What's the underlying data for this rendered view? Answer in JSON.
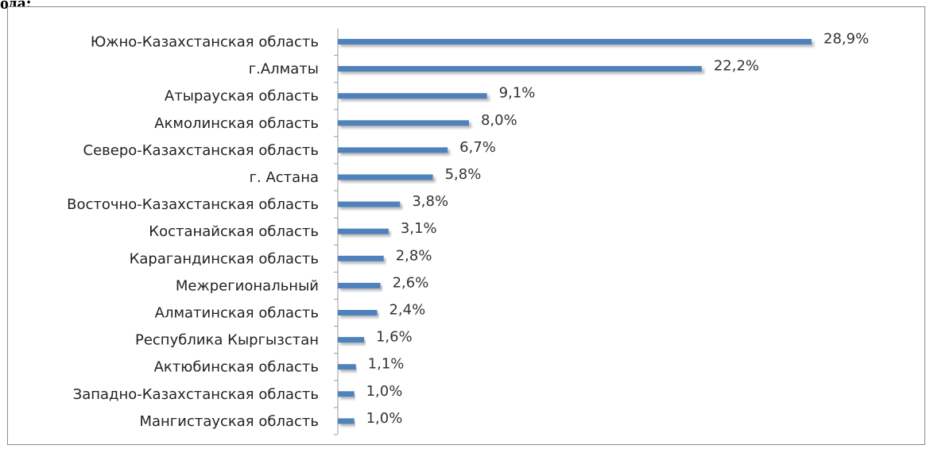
{
  "header_fragment": "ода:",
  "chart_data": {
    "type": "bar",
    "orientation": "horizontal",
    "categories": [
      "Южно-Казахстанская область",
      "г.Алматы",
      "Атырауская область",
      "Акмолинская область",
      "Северо-Казахстанская область",
      "г. Астана",
      "Восточно-Казахстанская область",
      "Костанайская область",
      "Карагандинская область",
      "Межрегиональный",
      "Алматинская область",
      "Республика Кыргызстан",
      "Актюбинская область",
      "Западно-Казахстанская область",
      "Мангистауская область"
    ],
    "values": [
      28.9,
      22.2,
      9.1,
      8.0,
      6.7,
      5.8,
      3.8,
      3.1,
      2.8,
      2.6,
      2.4,
      1.6,
      1.1,
      1.0,
      1.0
    ],
    "value_labels": [
      "28,9%",
      "22,2%",
      "9,1%",
      "8,0%",
      "6,7%",
      "5,8%",
      "3,8%",
      "3,1%",
      "2,8%",
      "2,6%",
      "2,4%",
      "1,6%",
      "1,1%",
      "1,0%",
      "1,0%"
    ],
    "title": "",
    "xlabel": "",
    "ylabel": "",
    "xlim": [
      0,
      30
    ],
    "grid": false,
    "legend": "none",
    "bar_color": "#4f81bd"
  }
}
